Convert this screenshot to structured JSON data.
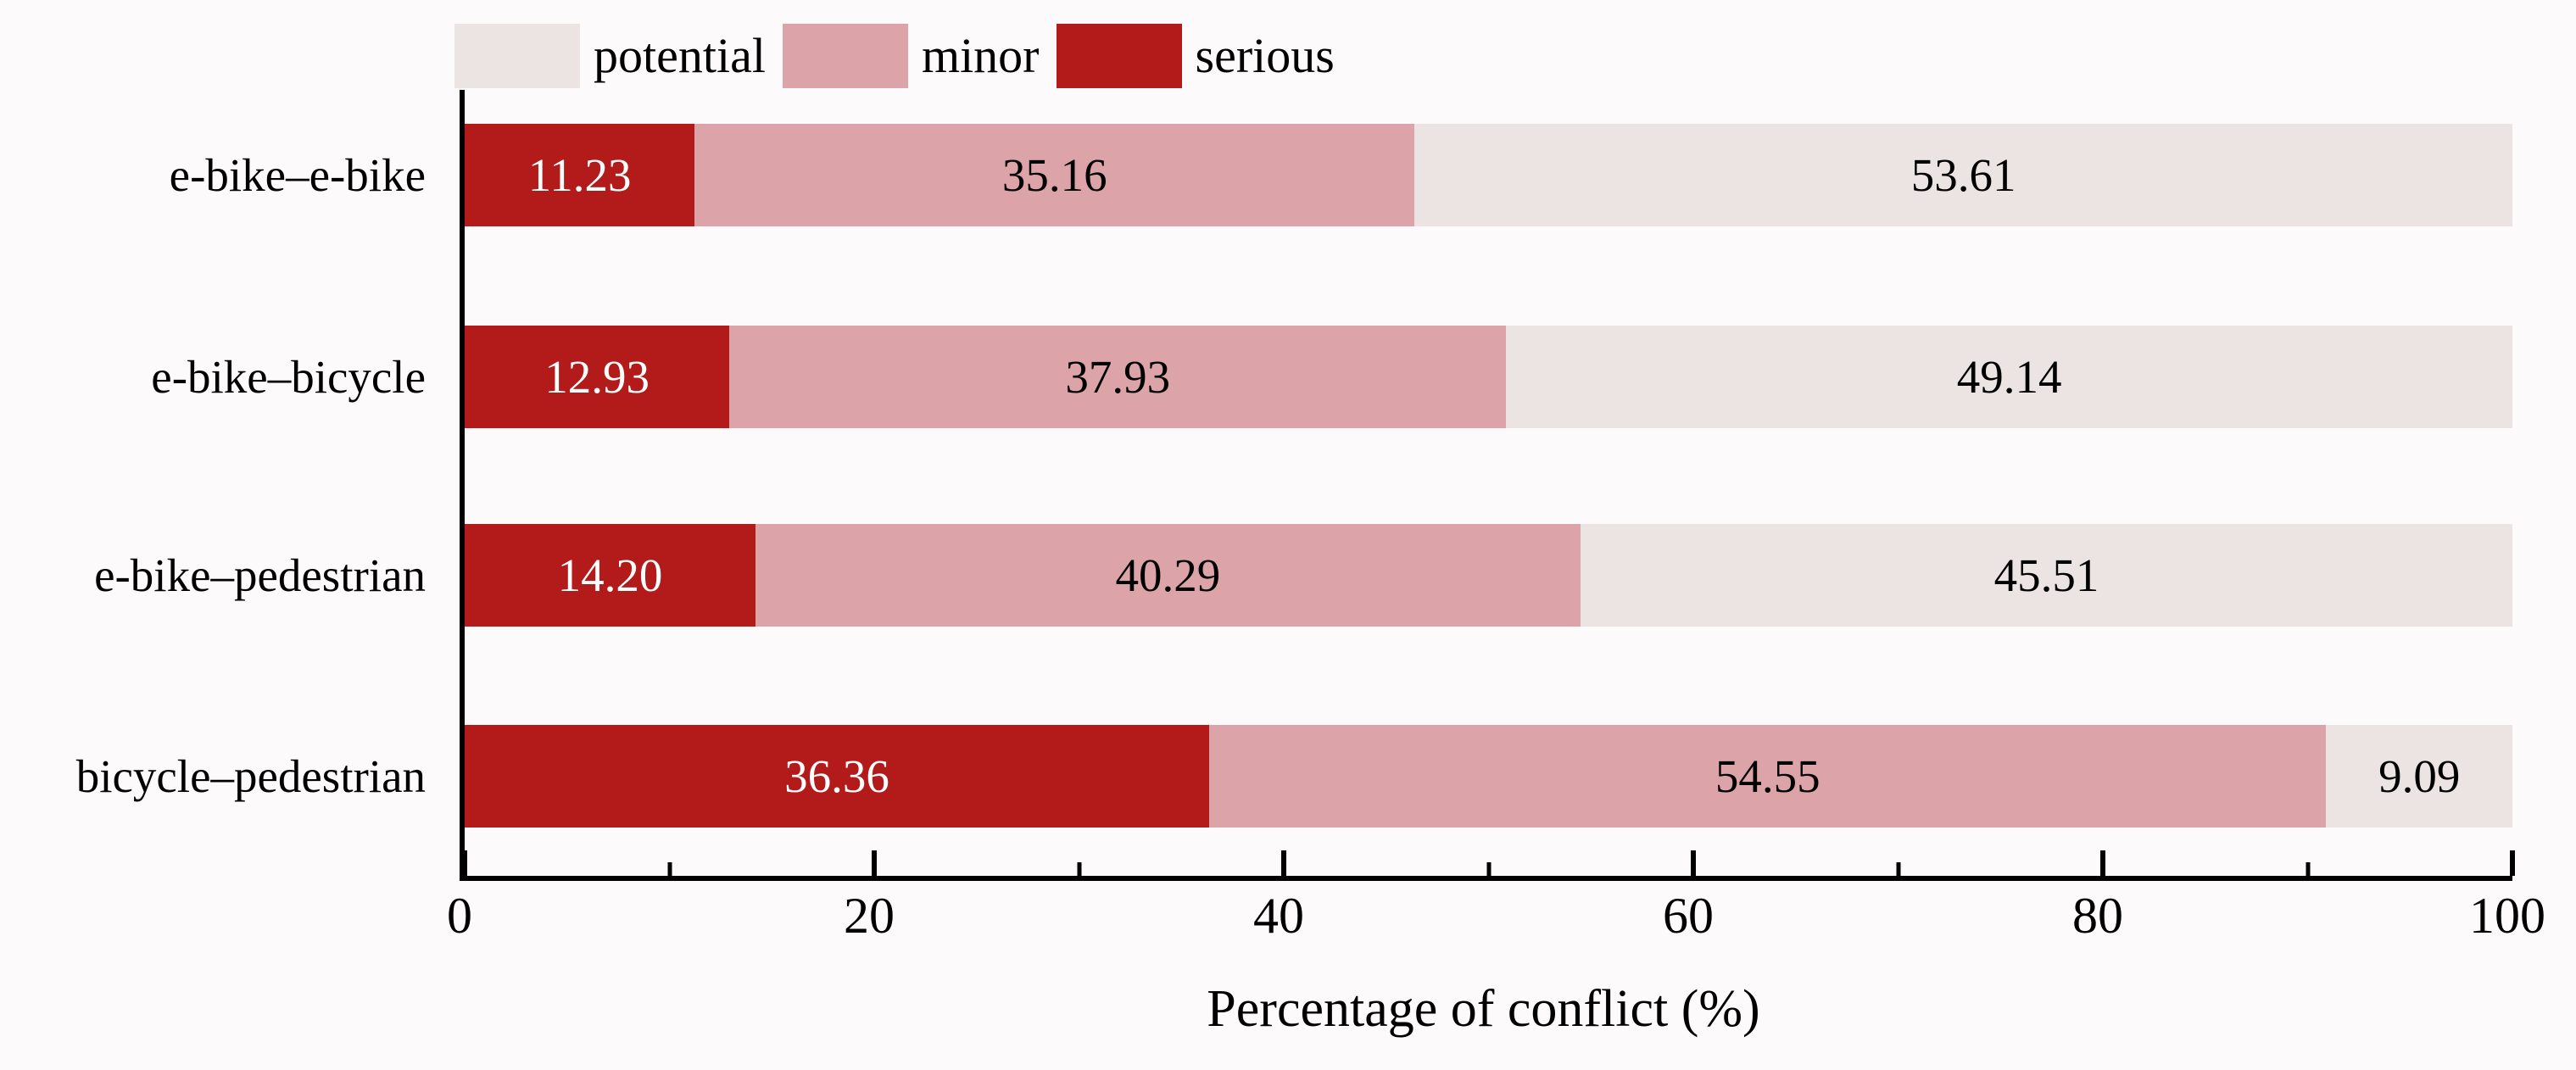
{
  "background_color": "#fcfafa",
  "axis_color": "#000000",
  "legend": {
    "position": "top",
    "items": [
      {
        "label": "potential",
        "color": "#ece3e3"
      },
      {
        "label": "minor",
        "color": "#dca3a8"
      },
      {
        "label": "serious",
        "color": "#b31b1b"
      }
    ]
  },
  "chart_data": {
    "type": "bar",
    "orientation": "horizontal",
    "stacked": true,
    "title": "",
    "xlabel": "Percentage of conflict (%)",
    "ylabel": "",
    "xlim": [
      0,
      100
    ],
    "xticks": [
      0,
      20,
      40,
      60,
      80,
      100
    ],
    "minor_xticks": [
      10,
      30,
      50,
      70,
      90
    ],
    "grid": false,
    "categories": [
      "e-bike–e-bike",
      "e-bike–bicycle",
      "e-bike–pedestrian",
      "bicycle–pedestrian"
    ],
    "series": [
      {
        "name": "serious",
        "color": "#b31b1b",
        "label_color": "#ffffff",
        "values": [
          11.23,
          12.93,
          14.2,
          36.36
        ],
        "labels": [
          "11.23",
          "12.93",
          "14.20",
          "36.36"
        ]
      },
      {
        "name": "minor",
        "color": "#dca3a8",
        "label_color": "#000000",
        "values": [
          35.16,
          37.93,
          40.29,
          54.55
        ],
        "labels": [
          "35.16",
          "37.93",
          "40.29",
          "54.55"
        ]
      },
      {
        "name": "potential",
        "color": "#ece3e3",
        "label_color": "#000000",
        "values": [
          53.61,
          49.14,
          45.51,
          9.09
        ],
        "labels": [
          "53.61",
          "49.14",
          "45.51",
          "9.09"
        ]
      }
    ]
  }
}
